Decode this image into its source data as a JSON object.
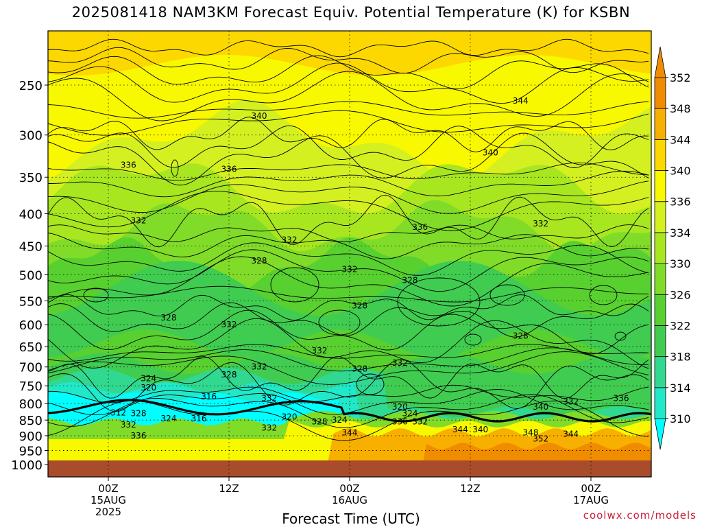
{
  "chart_data": {
    "type": "heatmap",
    "title": "2025081418 NAM3KM Forecast Equiv. Potential Temperature (K) for KSBN",
    "xlabel": "Forecast Time (UTC)",
    "ylabel": "",
    "y_axis": {
      "scale": "log",
      "reversed": true,
      "range": [
        1000,
        200
      ],
      "ticks": [
        250,
        300,
        350,
        400,
        450,
        500,
        550,
        600,
        650,
        700,
        750,
        800,
        850,
        900,
        950,
        1000
      ]
    },
    "x_axis": {
      "range_hours": [
        -6,
        54
      ],
      "ticks": [
        {
          "hour": 0,
          "lines": [
            "00Z",
            "15AUG",
            "2025"
          ]
        },
        {
          "hour": 12,
          "lines": [
            "12Z"
          ]
        },
        {
          "hour": 24,
          "lines": [
            "00Z",
            "16AUG"
          ]
        },
        {
          "hour": 36,
          "lines": [
            "12Z"
          ]
        },
        {
          "hour": 48,
          "lines": [
            "00Z",
            "17AUG"
          ]
        }
      ]
    },
    "grid": true,
    "colorbar": {
      "placement": "right",
      "levels": [
        310,
        314,
        318,
        322,
        326,
        330,
        334,
        336,
        340,
        344,
        348,
        352
      ],
      "colors": [
        "#00ffff",
        "#20e8c8",
        "#30d890",
        "#40cc50",
        "#58d030",
        "#80dc28",
        "#a8e620",
        "#d4f020",
        "#f8f800",
        "#fcd800",
        "#f8b000",
        "#f08c00"
      ]
    },
    "contour_labels": [
      {
        "text": "340",
        "hour": 15,
        "p": 280
      },
      {
        "text": "344",
        "hour": 41,
        "p": 265
      },
      {
        "text": "336",
        "hour": 2,
        "p": 335
      },
      {
        "text": "336",
        "hour": 12,
        "p": 340
      },
      {
        "text": "340",
        "hour": 38,
        "p": 320
      },
      {
        "text": "332",
        "hour": 3,
        "p": 410
      },
      {
        "text": "336",
        "hour": 31,
        "p": 420
      },
      {
        "text": "332",
        "hour": 43,
        "p": 415
      },
      {
        "text": "332",
        "hour": 18,
        "p": 440
      },
      {
        "text": "328",
        "hour": 15,
        "p": 475
      },
      {
        "text": "332",
        "hour": 24,
        "p": 490
      },
      {
        "text": "328",
        "hour": 30,
        "p": 510
      },
      {
        "text": "328",
        "hour": 25,
        "p": 560
      },
      {
        "text": "328",
        "hour": 6,
        "p": 585
      },
      {
        "text": "332",
        "hour": 12,
        "p": 600
      },
      {
        "text": "328",
        "hour": 41,
        "p": 625
      },
      {
        "text": "332",
        "hour": 21,
        "p": 660
      },
      {
        "text": "332",
        "hour": 15,
        "p": 700
      },
      {
        "text": "332",
        "hour": 29,
        "p": 690
      },
      {
        "text": "328",
        "hour": 25,
        "p": 705
      },
      {
        "text": "328",
        "hour": 12,
        "p": 720
      },
      {
        "text": "324",
        "hour": 4,
        "p": 730
      },
      {
        "text": "320",
        "hour": 4,
        "p": 755
      },
      {
        "text": "316",
        "hour": 10,
        "p": 780
      },
      {
        "text": "332",
        "hour": 16,
        "p": 785
      },
      {
        "text": "332",
        "hour": 46,
        "p": 795
      },
      {
        "text": "336",
        "hour": 51,
        "p": 785
      },
      {
        "text": "340",
        "hour": 43,
        "p": 810
      },
      {
        "text": "320",
        "hour": 29,
        "p": 810
      },
      {
        "text": "312",
        "hour": 1,
        "p": 828
      },
      {
        "text": "328",
        "hour": 3,
        "p": 830
      },
      {
        "text": "324",
        "hour": 30,
        "p": 830
      },
      {
        "text": "320",
        "hour": 18,
        "p": 840
      },
      {
        "text": "324",
        "hour": 6,
        "p": 845
      },
      {
        "text": "316",
        "hour": 9,
        "p": 845
      },
      {
        "text": "324",
        "hour": 23,
        "p": 850
      },
      {
        "text": "328",
        "hour": 21,
        "p": 855
      },
      {
        "text": "336",
        "hour": 29,
        "p": 855
      },
      {
        "text": "332",
        "hour": 31,
        "p": 855
      },
      {
        "text": "332",
        "hour": 2,
        "p": 865
      },
      {
        "text": "332",
        "hour": 16,
        "p": 875
      },
      {
        "text": "344",
        "hour": 35,
        "p": 880
      },
      {
        "text": "340",
        "hour": 37,
        "p": 880
      },
      {
        "text": "344",
        "hour": 24,
        "p": 890
      },
      {
        "text": "348",
        "hour": 42,
        "p": 890
      },
      {
        "text": "344",
        "hour": 46,
        "p": 895
      },
      {
        "text": "336",
        "hour": 3,
        "p": 900
      },
      {
        "text": "352",
        "hour": 43,
        "p": 910
      }
    ]
  },
  "credit": "coolwx.com/models"
}
